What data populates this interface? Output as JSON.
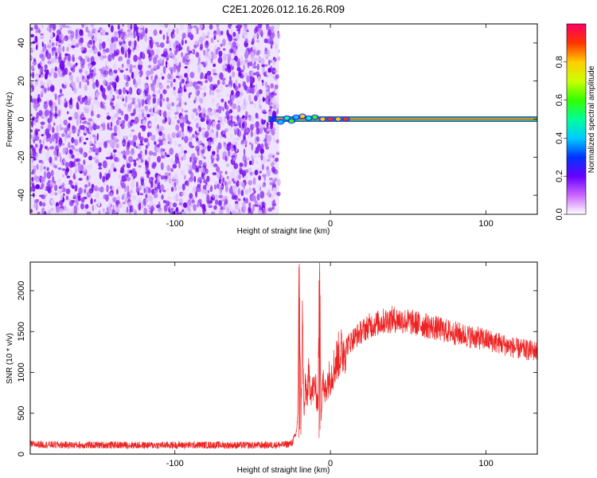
{
  "figure_title": "C2E1.2026.012.16.26.R09",
  "chart_data": [
    {
      "type": "heatmap",
      "title": "C2E1.2026.012.16.26.R09",
      "xlabel": "Height of straight line (km)",
      "ylabel": "Frequency (Hz)",
      "xlim": [
        -193,
        133
      ],
      "ylim": [
        -50,
        50
      ],
      "x_ticks": [
        -100,
        0,
        100
      ],
      "y_ticks": [
        -40,
        -20,
        0,
        20,
        40
      ],
      "colorbar": {
        "label": "Normalized spectral amplitude",
        "range": [
          0.0,
          1.0
        ],
        "ticks": [
          0.0,
          0.2,
          0.4,
          0.6,
          0.8
        ],
        "colors": [
          "#ffffff",
          "#cc66ff",
          "#6600ff",
          "#0033ff",
          "#00ccff",
          "#00ff99",
          "#33ff00",
          "#ccff00",
          "#ffcc00",
          "#ff3300",
          "#ff0066"
        ]
      },
      "noise_region": {
        "x_range": [
          -193,
          -33
        ],
        "y_range": [
          -50,
          50
        ]
      },
      "carrier_line": {
        "frequency": 0,
        "x_range": [
          -40,
          133
        ]
      }
    },
    {
      "type": "line",
      "title": "",
      "xlabel": "Height of straight line (km)",
      "ylabel": "SNR (10 * v/v)",
      "xlim": [
        -193,
        133
      ],
      "ylim": [
        0,
        2350
      ],
      "x_ticks": [
        -100,
        0,
        100
      ],
      "y_ticks": [
        0,
        500,
        1000,
        1500,
        2000
      ],
      "color": "#ee2222",
      "series": [
        {
          "x": [
            -193,
            -180,
            -160,
            -140,
            -120,
            -100,
            -80,
            -60,
            -40,
            -30,
            -25,
            -22,
            -21,
            -20,
            -19,
            -18,
            -17,
            -16,
            -15,
            -14,
            -12,
            -10,
            -8,
            -7,
            -6,
            -5,
            -4,
            -2,
            0,
            5,
            10,
            15,
            20,
            25,
            30,
            35,
            40,
            45,
            50,
            60,
            70,
            80,
            90,
            100,
            110,
            120,
            133
          ],
          "y": [
            120,
            115,
            110,
            112,
            108,
            110,
            112,
            108,
            110,
            115,
            130,
            250,
            500,
            2330,
            300,
            1700,
            450,
            850,
            700,
            950,
            750,
            850,
            600,
            2240,
            500,
            1000,
            700,
            900,
            950,
            1200,
            1320,
            1420,
            1500,
            1570,
            1600,
            1630,
            1650,
            1640,
            1620,
            1580,
            1530,
            1480,
            1440,
            1400,
            1350,
            1290,
            1260
          ]
        }
      ]
    }
  ]
}
